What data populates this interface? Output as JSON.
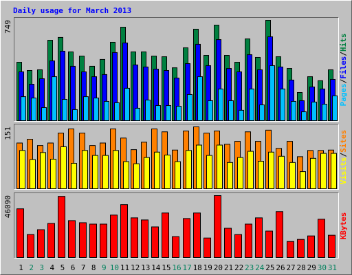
{
  "title": "Daily usage for March 2013",
  "title_color": "#0000ff",
  "chart_data": [
    {
      "type": "bar",
      "ylim": [
        0,
        749
      ],
      "yticks": [
        749
      ],
      "legend_separator": "/",
      "series": [
        {
          "name": "Hits",
          "color": "#008040",
          "values": [
            438,
            377,
            382,
            601,
            622,
            515,
            484,
            408,
            459,
            586,
            698,
            515,
            515,
            484,
            479,
            397,
            545,
            683,
            489,
            713,
            489,
            438,
            611,
            474,
            749,
            479,
            392,
            214,
            331,
            301,
            382
          ]
        },
        {
          "name": "Files",
          "color": "#0000ff",
          "values": [
            367,
            275,
            316,
            448,
            520,
            408,
            367,
            331,
            347,
            510,
            581,
            418,
            403,
            387,
            377,
            321,
            428,
            571,
            413,
            606,
            392,
            367,
            494,
            382,
            627,
            403,
            306,
            153,
            255,
            240,
            311
          ]
        },
        {
          "name": "Pages",
          "color": "#00c0ff",
          "values": [
            183,
            173,
            102,
            331,
            163,
            87,
            183,
            173,
            148,
            138,
            245,
            97,
            158,
            117,
            117,
            112,
            199,
            331,
            153,
            240,
            153,
            82,
            240,
            122,
            413,
            240,
            148,
            71,
            143,
            127,
            189
          ]
        }
      ]
    },
    {
      "type": "bar",
      "ylim": [
        0,
        151
      ],
      "yticks": [
        151
      ],
      "legend_separator": "/",
      "series": [
        {
          "name": "Sites",
          "color": "#ff8000",
          "values": [
            112,
            121,
            106,
            112,
            136,
            146,
            136,
            106,
            112,
            146,
            124,
            96,
            114,
            146,
            139,
            95,
            141,
            151,
            136,
            141,
            109,
            116,
            139,
            116,
            143,
            99,
            116,
            79,
            94,
            94,
            95
          ]
        },
        {
          "name": "Visits",
          "color": "#ffff00",
          "values": [
            94,
            72,
            89,
            73,
            103,
            63,
            94,
            82,
            82,
            94,
            67,
            62,
            77,
            90,
            83,
            67,
            94,
            107,
            82,
            107,
            65,
            77,
            92,
            68,
            90,
            80,
            65,
            43,
            75,
            87,
            87
          ]
        }
      ]
    },
    {
      "type": "bar",
      "ylim": [
        0,
        46090
      ],
      "yticks": [
        46090
      ],
      "categories": [
        "1",
        "2",
        "3",
        "4",
        "5",
        "6",
        "7",
        "8",
        "9",
        "10",
        "11",
        "12",
        "13",
        "14",
        "15",
        "16",
        "17",
        "18",
        "19",
        "20",
        "21",
        "22",
        "23",
        "24",
        "25",
        "26",
        "27",
        "28",
        "29",
        "30",
        "31"
      ],
      "category_colors": [
        "#000000",
        "#00805c",
        "#00805c",
        "#000000",
        "#000000",
        "#000000",
        "#000000",
        "#000000",
        "#00805c",
        "#00805c",
        "#000000",
        "#000000",
        "#000000",
        "#000000",
        "#000000",
        "#00805c",
        "#00805c",
        "#000000",
        "#000000",
        "#000000",
        "#000000",
        "#000000",
        "#00805c",
        "#00805c",
        "#000000",
        "#000000",
        "#000000",
        "#000000",
        "#000000",
        "#00805c",
        "#00805c"
      ],
      "series": [
        {
          "name": "KBytes",
          "color": "#ff0000",
          "values": [
            36360,
            17412,
            20997,
            25606,
            45500,
            27654,
            26117,
            25094,
            25094,
            31751,
            39433,
            29702,
            28166,
            23045,
            33287,
            15875,
            29190,
            33287,
            14851,
            46090,
            22020,
            17412,
            25094,
            29702,
            19972,
            34311,
            12290,
            13827,
            16387,
            28678,
            16899
          ]
        }
      ]
    }
  ]
}
